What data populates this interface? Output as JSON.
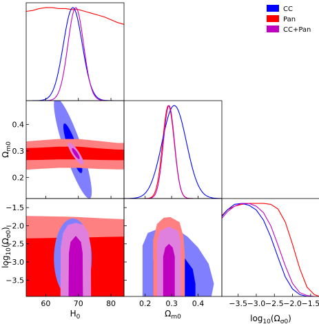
{
  "chart_data": {
    "type": "corner",
    "title": "",
    "parameters": [
      {
        "key": "H0",
        "label_base": "H",
        "label_sub": "0",
        "range": [
          54,
          84
        ],
        "ticks": [
          60,
          70,
          80
        ]
      },
      {
        "key": "Om",
        "label_base": "Ω",
        "label_sub": "m0",
        "range": [
          0.12,
          0.49
        ],
        "ticks": [
          0.2,
          0.3,
          0.4
        ]
      },
      {
        "key": "Ok",
        "label_base": "log",
        "label_sub": "10",
        "label_tail": "(Ω",
        "label_sub2": "σ0",
        "label_end": ")",
        "range": [
          -3.95,
          -1.25
        ],
        "ticks": [
          -3.5,
          -3.0,
          -2.5,
          -2.0,
          -1.5
        ]
      }
    ],
    "tick_labels": {
      "H0": [
        "60",
        "70",
        "80"
      ],
      "Om": [
        "0.2",
        "0.3",
        "0.4"
      ],
      "Ok": [
        "−3.5",
        "−3.0",
        "−2.5",
        "−2.0",
        "−1.5"
      ]
    },
    "axis_labels": {
      "x": [
        "H0",
        "Ωm0",
        "log10(Ωσ0)"
      ],
      "y": [
        "Ωm0",
        "log10(Ωσ0)"
      ]
    },
    "legend": {
      "placement": "top-right",
      "entries": [
        {
          "name": "CC",
          "color": "#0000ff"
        },
        {
          "name": "Pan",
          "color": "#ff0000"
        },
        {
          "name": "CC+Pan",
          "color": "#bf00bf"
        }
      ]
    },
    "colors": {
      "CC": {
        "line": "#0000ff",
        "inner": "#0000ff",
        "outer": "#8080ff"
      },
      "Pan": {
        "line": "#ff0000",
        "inner": "#ff0000",
        "outer": "#ff8080"
      },
      "CCPan": {
        "line": "#bf00bf",
        "inner": "#bf00bf",
        "outer": "#df80df"
      }
    },
    "diagonal": {
      "H0": {
        "CC": {
          "type": "gauss",
          "mu": 68.3,
          "sigma": 2.9
        },
        "Pan": {
          "type": "points",
          "x": [
            54,
            56,
            58,
            60,
            62,
            64,
            66,
            68,
            70,
            72,
            74,
            76,
            78,
            80,
            82,
            84
          ],
          "y": [
            0.96,
            0.97,
            0.99,
            1.0,
            1.0,
            0.99,
            0.99,
            0.98,
            0.98,
            0.96,
            0.94,
            0.92,
            0.9,
            0.87,
            0.84,
            0.82
          ]
        },
        "CCPan": {
          "type": "gauss",
          "mu": 69.2,
          "sigma": 2.4
        }
      },
      "Om": {
        "CC": {
          "type": "gauss",
          "mu": 0.31,
          "sigma": 0.046
        },
        "Pan": {
          "type": "gauss",
          "mu": 0.288,
          "sigma": 0.022
        },
        "CCPan": {
          "type": "gauss",
          "mu": 0.29,
          "sigma": 0.021
        }
      },
      "Ok": {
        "CC": {
          "type": "points",
          "x": [
            -3.95,
            -3.8,
            -3.6,
            -3.4,
            -3.2,
            -3.0,
            -2.8,
            -2.6,
            -2.4,
            -2.2,
            -2.0,
            -1.8,
            -1.6,
            -1.4,
            -1.25
          ],
          "y": [
            0.86,
            0.93,
            0.99,
            1.0,
            0.98,
            0.93,
            0.82,
            0.64,
            0.42,
            0.21,
            0.08,
            0.02,
            0.0,
            0.0,
            0.0
          ]
        },
        "Pan": {
          "type": "points",
          "x": [
            -3.95,
            -3.8,
            -3.6,
            -3.4,
            -3.2,
            -3.0,
            -2.8,
            -2.6,
            -2.4,
            -2.2,
            -2.0,
            -1.8,
            -1.6,
            -1.4,
            -1.25
          ],
          "y": [
            0.87,
            0.93,
            0.97,
            0.99,
            1.0,
            1.0,
            1.0,
            0.99,
            0.94,
            0.8,
            0.56,
            0.3,
            0.1,
            0.02,
            0.0
          ]
        },
        "CCPan": {
          "type": "points",
          "x": [
            -3.95,
            -3.8,
            -3.6,
            -3.4,
            -3.2,
            -3.0,
            -2.8,
            -2.6,
            -2.4,
            -2.2,
            -2.0,
            -1.8,
            -1.6,
            -1.4,
            -1.25
          ],
          "y": [
            0.84,
            0.91,
            0.97,
            1.0,
            1.0,
            0.97,
            0.9,
            0.76,
            0.55,
            0.33,
            0.14,
            0.04,
            0.01,
            0.0,
            0.0
          ]
        }
      }
    },
    "contours": [
      {
        "x": "H0",
        "y": "Om",
        "series": "CC",
        "level": "outer",
        "shape": "ellipse",
        "cx": 68.3,
        "cy": 0.31,
        "sx": 5.8,
        "sy": 0.19,
        "rho": -0.87
      },
      {
        "x": "H0",
        "y": "Om",
        "series": "CC",
        "level": "inner",
        "shape": "ellipse",
        "cx": 68.3,
        "cy": 0.31,
        "sx": 2.9,
        "sy": 0.094,
        "rho": -0.87
      },
      {
        "x": "H0",
        "y": "Om",
        "series": "Pan",
        "level": "outer",
        "shape": "polygon",
        "x_pts": [
          53,
          58,
          64,
          70,
          76,
          82,
          85,
          85,
          82,
          76,
          70,
          64,
          58,
          53
        ],
        "y_pts": [
          0.335,
          0.34,
          0.345,
          0.345,
          0.338,
          0.33,
          0.33,
          0.23,
          0.23,
          0.232,
          0.236,
          0.236,
          0.232,
          0.228
        ]
      },
      {
        "x": "H0",
        "y": "Om",
        "series": "Pan",
        "level": "inner",
        "shape": "polygon",
        "x_pts": [
          53,
          58,
          64,
          70,
          76,
          82,
          85,
          85,
          82,
          76,
          70,
          64,
          58,
          53
        ],
        "y_pts": [
          0.31,
          0.312,
          0.316,
          0.316,
          0.31,
          0.305,
          0.305,
          0.265,
          0.265,
          0.266,
          0.268,
          0.268,
          0.266,
          0.265
        ]
      },
      {
        "x": "H0",
        "y": "Om",
        "series": "CCPan",
        "level": "outer",
        "shape": "ellipse",
        "cx": 69.2,
        "cy": 0.29,
        "sx": 2.4,
        "sy": 0.042,
        "rho": -0.85
      },
      {
        "x": "H0",
        "y": "Om",
        "series": "CCPan",
        "level": "inner",
        "shape": "ellipse",
        "cx": 69.2,
        "cy": 0.29,
        "sx": 1.2,
        "sy": 0.021,
        "rho": -0.85
      },
      {
        "x": "H0",
        "y": "Ok",
        "series": "Pan",
        "level": "outer",
        "shape": "polygon",
        "x_pts": [
          54,
          60,
          66,
          70,
          74,
          78,
          84,
          84,
          80,
          77,
          74,
          71,
          68,
          66,
          64,
          60,
          54
        ],
        "y_pts": [
          -1.73,
          -1.74,
          -1.75,
          -1.76,
          -1.78,
          -1.8,
          -1.82,
          -3.0,
          -3.18,
          -3.35,
          -3.5,
          -3.65,
          -3.8,
          -3.95,
          -3.97,
          -3.97,
          -3.97
        ]
      },
      {
        "x": "H0",
        "y": "Ok",
        "series": "Pan",
        "level": "inner",
        "shape": "polygon",
        "x_pts": [
          54,
          60,
          66,
          70,
          74,
          78,
          84,
          84,
          78,
          72,
          66,
          60,
          54
        ],
        "y_pts": [
          -2.35,
          -2.34,
          -2.33,
          -2.33,
          -2.32,
          -2.31,
          -2.3,
          -3.97,
          -3.97,
          -3.97,
          -3.97,
          -3.97,
          -3.97
        ]
      },
      {
        "x": "H0",
        "y": "Ok",
        "series": "CC",
        "level": "outer",
        "shape": "ellipse",
        "cx": 68.3,
        "cy": -2.9,
        "sx": 5.8,
        "sy": 1.1,
        "rho": 0.0
      },
      {
        "x": "H0",
        "y": "Ok",
        "series": "CC",
        "level": "inner",
        "shape": "ellipse",
        "cx": 68.3,
        "cy": -3.0,
        "sx": 2.9,
        "sy": 0.55,
        "rho": 0.0
      },
      {
        "x": "H0",
        "y": "Ok",
        "series": "CCPan",
        "level": "outer",
        "shape": "polygon",
        "x_pts": [
          64.5,
          64.6,
          65.3,
          66.8,
          69.2,
          71.6,
          73.1,
          73.8,
          73.9,
          73.5,
          69.2,
          64.9
        ],
        "y_pts": [
          -3.97,
          -2.6,
          -2.2,
          -1.98,
          -1.92,
          -1.98,
          -2.2,
          -2.6,
          -3.97,
          -4.1,
          -4.1,
          -4.1
        ]
      },
      {
        "x": "H0",
        "y": "Ok",
        "series": "CCPan",
        "level": "inner",
        "shape": "polygon",
        "x_pts": [
          67.0,
          67.1,
          67.6,
          69.2,
          70.8,
          71.3,
          71.4,
          71.3,
          69.2,
          67.1
        ],
        "y_pts": [
          -3.97,
          -2.75,
          -2.45,
          -2.28,
          -2.45,
          -2.75,
          -3.97,
          -4.05,
          -4.05,
          -4.05
        ]
      },
      {
        "x": "Om",
        "y": "Ok",
        "series": "CC",
        "level": "outer",
        "shape": "polygon",
        "x_pts": [
          0.19,
          0.19,
          0.21,
          0.26,
          0.32,
          0.36,
          0.4,
          0.44,
          0.46,
          0.45,
          0.4,
          0.3,
          0.2
        ],
        "y_pts": [
          -3.97,
          -2.55,
          -2.2,
          -2.05,
          -2.1,
          -2.3,
          -2.6,
          -3.05,
          -3.6,
          -3.97,
          -4.05,
          -4.05,
          -4.05
        ]
      },
      {
        "x": "Om",
        "y": "Ok",
        "series": "CC",
        "level": "inner",
        "shape": "polygon",
        "x_pts": [
          0.23,
          0.23,
          0.25,
          0.29,
          0.32,
          0.35,
          0.38,
          0.39,
          0.39,
          0.3
        ],
        "y_pts": [
          -3.97,
          -2.95,
          -2.7,
          -2.55,
          -2.65,
          -2.9,
          -3.2,
          -3.6,
          -3.97,
          -4.05
        ]
      },
      {
        "x": "Om",
        "y": "Ok",
        "series": "Pan",
        "level": "outer",
        "shape": "polygon",
        "x_pts": [
          0.23,
          0.23,
          0.245,
          0.27,
          0.295,
          0.33,
          0.345,
          0.35,
          0.35,
          0.29
        ],
        "y_pts": [
          -3.97,
          -2.4,
          -1.95,
          -1.78,
          -1.76,
          -1.9,
          -2.3,
          -2.8,
          -3.97,
          -4.05
        ]
      },
      {
        "x": "Om",
        "y": "Ok",
        "series": "Pan",
        "level": "inner",
        "shape": "polygon",
        "x_pts": [
          0.26,
          0.26,
          0.27,
          0.29,
          0.31,
          0.32,
          0.32,
          0.29
        ],
        "y_pts": [
          -3.97,
          -2.7,
          -2.45,
          -2.35,
          -2.45,
          -2.7,
          -3.97,
          -4.05
        ]
      },
      {
        "x": "Om",
        "y": "Ok",
        "series": "CCPan",
        "level": "outer",
        "shape": "polygon",
        "x_pts": [
          0.245,
          0.245,
          0.255,
          0.29,
          0.325,
          0.335,
          0.335,
          0.29
        ],
        "y_pts": [
          -3.97,
          -2.45,
          -2.15,
          -2.02,
          -2.15,
          -2.45,
          -3.97,
          -4.05
        ]
      },
      {
        "x": "Om",
        "y": "Ok",
        "series": "CCPan",
        "level": "inner",
        "shape": "polygon",
        "x_pts": [
          0.268,
          0.268,
          0.276,
          0.29,
          0.304,
          0.312,
          0.312,
          0.29
        ],
        "y_pts": [
          -3.97,
          -2.85,
          -2.6,
          -2.5,
          -2.6,
          -2.85,
          -3.97,
          -4.05
        ]
      }
    ]
  }
}
